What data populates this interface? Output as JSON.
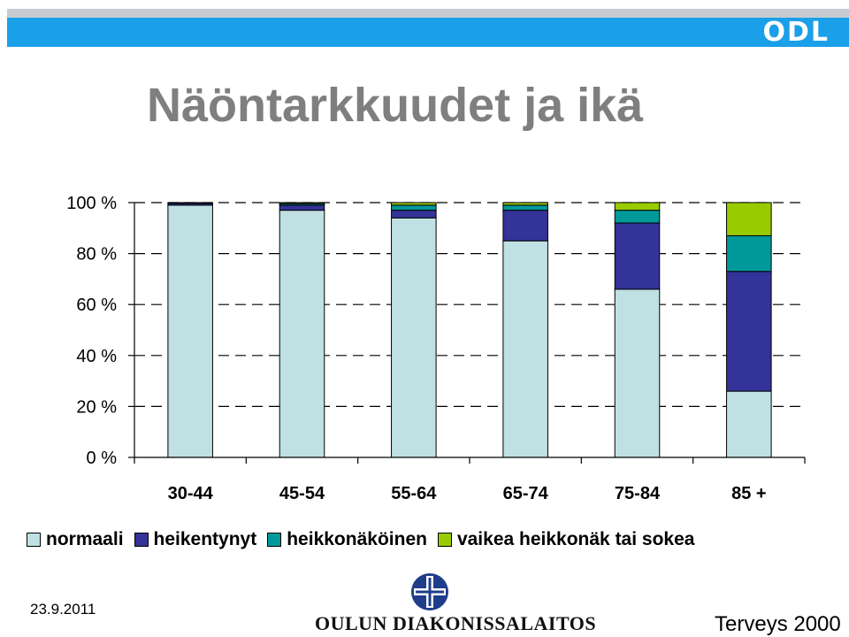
{
  "header": {
    "logo_text": "ODL",
    "title": "Näöntarkkuudet ja ikä"
  },
  "colors": {
    "normaali": "#bfe1e3",
    "heikentynyt": "#333399",
    "heikkonakoinen": "#009999",
    "vaikea": "#99cc00",
    "top_bar_blue": "#1aa0e8",
    "title_gray": "#7f7f7f"
  },
  "chart_data": {
    "type": "bar",
    "stacked": true,
    "percent_stacked": true,
    "categories": [
      "30-44",
      "45-54",
      "55-64",
      "65-74",
      "75-84",
      "85 +"
    ],
    "series": [
      {
        "name": "normaali",
        "values": [
          99,
          97,
          94,
          85,
          66,
          26
        ]
      },
      {
        "name": "heikentynyt",
        "values": [
          0.7,
          2,
          3,
          12,
          26,
          47
        ]
      },
      {
        "name": "heikkonäköinen",
        "values": [
          0.2,
          0.6,
          2,
          2,
          5,
          14
        ]
      },
      {
        "name": "vaikea heikkonäk tai sokea",
        "values": [
          0.1,
          0.4,
          1,
          1,
          3,
          13
        ]
      }
    ],
    "y_ticks": [
      "0 %",
      "20 %",
      "40 %",
      "60 %",
      "80 %",
      "100 %"
    ],
    "ylim": [
      0,
      100
    ],
    "grid": "dashed horizontal",
    "legend_position": "bottom"
  },
  "footer": {
    "date": "23.9.2011",
    "logo_text": "OULUN DIAKONISSALAITOS",
    "brand": "Terveys 2000"
  }
}
